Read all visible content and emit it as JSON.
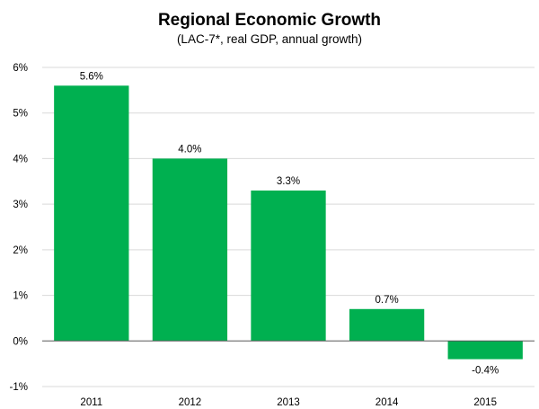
{
  "chart_data": {
    "type": "bar",
    "title": "Regional Economic Growth",
    "subtitle": "(LAC-7*, real GDP, annual growth)",
    "xlabel": "",
    "ylabel": "",
    "categories": [
      "2011",
      "2012",
      "2013",
      "2014",
      "2015"
    ],
    "values": [
      5.6,
      4.0,
      3.3,
      0.7,
      -0.4
    ],
    "data_labels": [
      "5.6%",
      "4.0%",
      "3.3%",
      "0.7%",
      "-0.4%"
    ],
    "ylim": [
      -1,
      6
    ],
    "yticks": [
      6,
      5,
      4,
      3,
      2,
      1,
      0,
      -1
    ],
    "ytick_labels": [
      "6%",
      "5%",
      "4%",
      "3%",
      "2%",
      "1%",
      "0%",
      "-1%"
    ],
    "grid": true,
    "legend": "none",
    "bar_color": "#00b050"
  }
}
